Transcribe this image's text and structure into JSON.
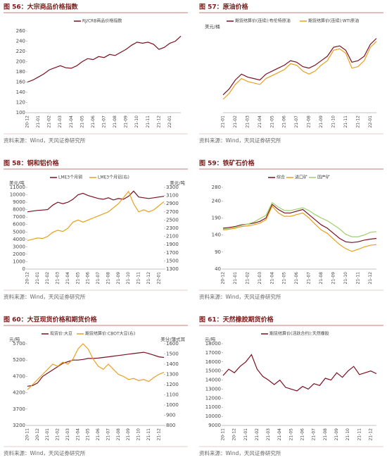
{
  "chart_data": [
    {
      "type": "line",
      "title": "图 56：大宗商品价格指数",
      "source": "资料来源：Wind，天风证券研究所",
      "categories": [
        "20-12",
        null,
        "21-01",
        null,
        "21-02",
        null,
        "21-03",
        null,
        "21-04",
        null,
        "21-05",
        null,
        "21-06",
        null,
        "21-07",
        null,
        "21-08",
        null,
        "21-09",
        null,
        "21-10",
        null,
        "21-11",
        null,
        "21-12",
        null,
        "22-01",
        null,
        null
      ],
      "ylim": [
        100,
        260
      ],
      "yticks": [
        100,
        120,
        140,
        160,
        180,
        200,
        220,
        240,
        260
      ],
      "series": [
        {
          "name": "RJ/CRB商品价格指数",
          "color": "#7b1020",
          "values": [
            160,
            164,
            170,
            176,
            184,
            188,
            192,
            188,
            187,
            192,
            200,
            206,
            204,
            210,
            208,
            214,
            212,
            218,
            224,
            232,
            238,
            236,
            238,
            234,
            224,
            228,
            236,
            240,
            250
          ]
        }
      ]
    },
    {
      "type": "line",
      "title": "图 57：原油价格",
      "source": "资料来源：Wind，天风证券研究所",
      "y_unit": "美元/桶",
      "categories": [
        "21-01",
        null,
        "21-02",
        null,
        "21-03",
        null,
        "21-04",
        null,
        "21-05",
        null,
        "21-06",
        null,
        "21-07",
        null,
        "21-08",
        null,
        "21-09",
        null,
        "21-10",
        null,
        "21-11",
        null,
        "21-12",
        null,
        "22-01",
        null
      ],
      "ylim": [
        40,
        95
      ],
      "series": [
        {
          "name": "期货结算价(连续):布伦特原油",
          "color": "#7b1020",
          "values": [
            52,
            56,
            62,
            66,
            64,
            63,
            62,
            66,
            68,
            70,
            72,
            75,
            74,
            71,
            70,
            72,
            75,
            78,
            84,
            85,
            82,
            74,
            75,
            78,
            86,
            90
          ]
        },
        {
          "name": "期货结算价(连续):WTI原油",
          "color": "#e8a020",
          "values": [
            49,
            53,
            59,
            63,
            61,
            60,
            59,
            63,
            65,
            67,
            69,
            73,
            72,
            68,
            66,
            68,
            72,
            75,
            82,
            83,
            80,
            70,
            71,
            75,
            84,
            88
          ]
        }
      ]
    },
    {
      "type": "line",
      "title": "图 58：铜和铝价格",
      "source": "资料来源：Wind，天风证券研究所",
      "y_unit": "美元/吨",
      "y2_unit": "美元/吨",
      "categories": [
        "20-12",
        null,
        "21-01",
        null,
        "21-02",
        null,
        "21-03",
        null,
        "21-04",
        null,
        "21-05",
        null,
        "21-06",
        null,
        "21-07",
        null,
        "21-08",
        null,
        "21-09",
        null,
        "21-10",
        null,
        "21-11",
        null,
        "21-12",
        null,
        "22-01",
        null
      ],
      "ylim": [
        0,
        11000
      ],
      "yticks": [
        0,
        1000,
        2000,
        3000,
        4000,
        5000,
        6000,
        7000,
        8000,
        9000,
        10000,
        11000
      ],
      "y2lim": [
        1300,
        3300
      ],
      "y2ticks": [
        1300,
        1500,
        1700,
        1900,
        2100,
        2300,
        2500,
        2700,
        2900,
        3100,
        3300
      ],
      "series": [
        {
          "name": "LME3个月铜",
          "color": "#7b1020",
          "values": [
            7700,
            7800,
            7900,
            7950,
            8000,
            8600,
            9000,
            8800,
            9000,
            9400,
            10000,
            10200,
            9900,
            9700,
            9500,
            9400,
            9600,
            9300,
            9500,
            9400,
            9800,
            10500,
            9700,
            9600,
            9500,
            9600,
            9700,
            9800
          ]
        },
        {
          "name": "LME3个月铝(右)",
          "color": "#e8a020",
          "axis": "y2",
          "values": [
            2000,
            2030,
            2060,
            2050,
            2100,
            2200,
            2250,
            2220,
            2300,
            2450,
            2500,
            2450,
            2500,
            2550,
            2600,
            2650,
            2700,
            2800,
            2900,
            3050,
            3200,
            2900,
            2700,
            2750,
            2700,
            2750,
            2850,
            2950
          ]
        }
      ]
    },
    {
      "type": "line",
      "title": "图 59：铁矿石价格",
      "source": "资料来源：Wind，天风证券研究所",
      "categories": [
        "20-12",
        null,
        "21-01",
        null,
        "21-02",
        null,
        "21-03",
        null,
        "21-04",
        null,
        "21-05",
        null,
        "21-06",
        null,
        "21-07",
        null,
        "21-08",
        null,
        "21-09",
        null,
        "21-10",
        null,
        "21-11",
        null,
        "21-12",
        null
      ],
      "ylim": [
        40,
        280
      ],
      "yticks": [
        40,
        90,
        140,
        190,
        240,
        280
      ],
      "series": [
        {
          "name": "综合",
          "color": "#7b1020",
          "values": [
            160,
            162,
            165,
            170,
            172,
            175,
            180,
            190,
            230,
            215,
            205,
            205,
            210,
            215,
            200,
            185,
            170,
            160,
            145,
            130,
            120,
            118,
            120,
            125,
            128,
            130
          ]
        },
        {
          "name": "进口矿",
          "color": "#e8a020",
          "values": [
            155,
            157,
            160,
            165,
            167,
            170,
            175,
            185,
            225,
            205,
            195,
            195,
            200,
            205,
            190,
            172,
            155,
            145,
            128,
            112,
            100,
            92,
            98,
            105,
            110,
            112
          ]
        },
        {
          "name": "国产矿",
          "color": "#9ed06a",
          "values": [
            158,
            160,
            163,
            168,
            172,
            178,
            188,
            198,
            235,
            222,
            212,
            212,
            216,
            220,
            212,
            200,
            190,
            182,
            170,
            158,
            142,
            135,
            135,
            140,
            148,
            150
          ]
        }
      ]
    },
    {
      "type": "line",
      "title": "图 60：大豆现货价格和期货价格",
      "source": "资料来源：Wind，天风证券研究所",
      "y_unit": "元/吨",
      "y2_unit": "美分/蒲式耳",
      "categories": [
        "20-11",
        null,
        "20-12",
        null,
        "21-01",
        null,
        "21-02",
        null,
        "21-03",
        null,
        "21-04",
        null,
        "21-05",
        null,
        "21-06",
        null,
        "21-07",
        null,
        "21-08",
        null,
        "21-09",
        null,
        "21-10",
        null,
        "21-11",
        null,
        "21-12",
        null
      ],
      "ylim": [
        3200,
        5700
      ],
      "yticks": [
        3200,
        3700,
        4200,
        4700,
        5200,
        5700
      ],
      "y2lim": [
        800,
        1600
      ],
      "y2ticks": [
        800,
        900,
        1000,
        1100,
        1200,
        1300,
        1400,
        1500,
        1600
      ],
      "series": [
        {
          "name": "现货价:大豆",
          "color": "#7b1020",
          "values": [
            4400,
            4420,
            4500,
            4700,
            4800,
            4900,
            5000,
            5100,
            5150,
            5200,
            5200,
            5220,
            5250,
            5250,
            5260,
            5280,
            5300,
            5320,
            5340,
            5360,
            5380,
            5400,
            5420,
            5440,
            5400,
            5350,
            5300,
            5280
          ]
        },
        {
          "name": "期货结算价:CBOT大豆(右)",
          "color": "#e8a020",
          "axis": "y2",
          "values": [
            1150,
            1200,
            1250,
            1300,
            1350,
            1400,
            1380,
            1420,
            1400,
            1450,
            1550,
            1600,
            1550,
            1450,
            1380,
            1350,
            1400,
            1350,
            1300,
            1280,
            1250,
            1260,
            1240,
            1250,
            1230,
            1270,
            1300,
            1320
          ]
        }
      ]
    },
    {
      "type": "line",
      "title": "图 61：天然橡胶期货价格",
      "source": "资料来源：Wind，天风证券研究所",
      "y_unit": "元/吨",
      "categories": [
        "20-11",
        null,
        "20-12",
        null,
        "21-01",
        null,
        "21-02",
        null,
        "21-03",
        null,
        "21-04",
        null,
        "21-05",
        null,
        "21-06",
        null,
        "21-07",
        null,
        "21-08",
        null,
        "21-09",
        null,
        "21-10",
        null,
        "21-11",
        null,
        "21-12",
        null
      ],
      "ylim": [
        9000,
        18000
      ],
      "yticks": [
        9000,
        10000,
        11000,
        12000,
        13000,
        14000,
        15000,
        16000,
        17000,
        18000
      ],
      "series": [
        {
          "name": "期货结算价(活跃合约):天然橡胶",
          "color": "#7b1020",
          "values": [
            14500,
            15200,
            14800,
            15500,
            16000,
            16800,
            15200,
            14400,
            14000,
            13500,
            14000,
            13200,
            13000,
            12800,
            13300,
            13000,
            13600,
            13400,
            14200,
            14000,
            14800,
            14300,
            15000,
            15500,
            14600,
            14800,
            15000,
            14700
          ]
        }
      ]
    }
  ]
}
